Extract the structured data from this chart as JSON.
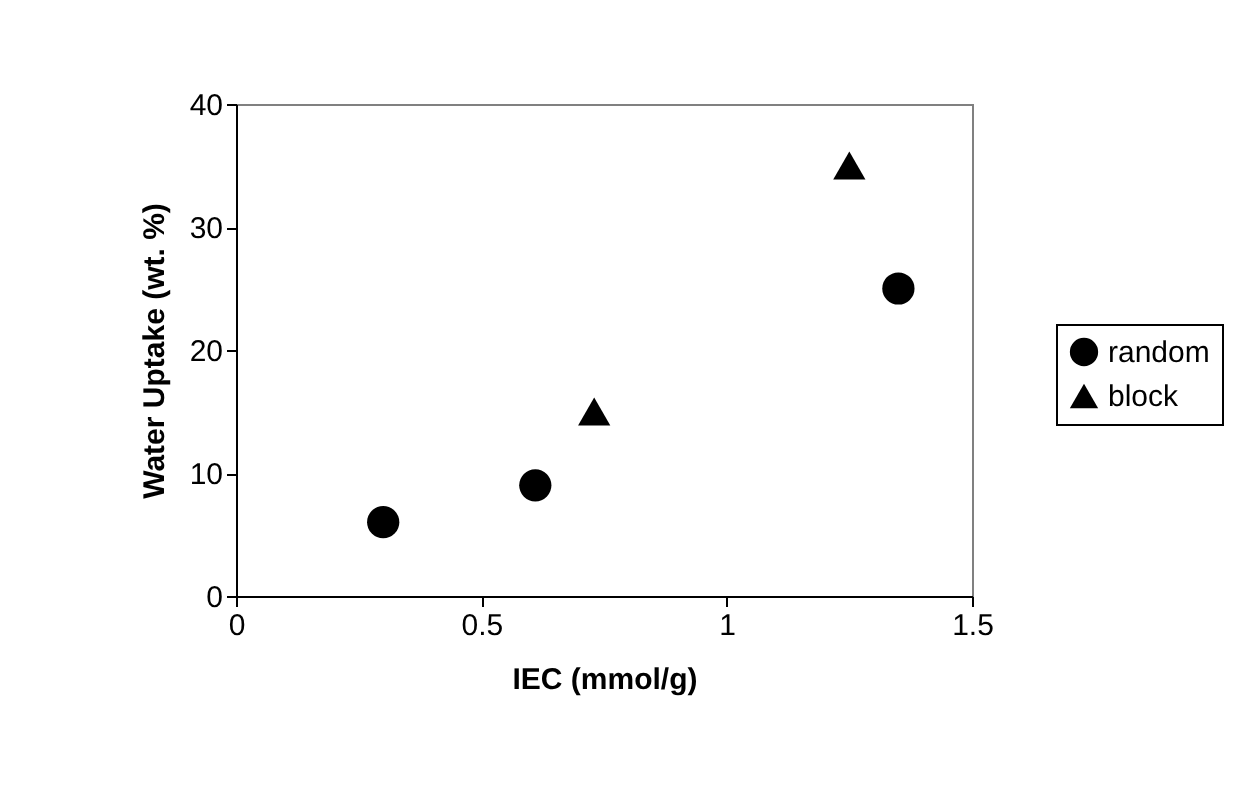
{
  "chart_data": {
    "type": "scatter",
    "xlabel": "IEC (mmol/g)",
    "ylabel": "Water Uptake (wt. %)",
    "xlim": [
      0,
      1.5
    ],
    "xticks": [
      0,
      0.5,
      1,
      1.5
    ],
    "ylim": [
      0,
      40
    ],
    "yticks": [
      0,
      10,
      20,
      30,
      40
    ],
    "grid": false,
    "legend": "right",
    "series": [
      {
        "name": "random",
        "color": "#000000",
        "marker": "circle",
        "x": [
          0.3,
          0.61,
          1.35
        ],
        "values": [
          6,
          9,
          25
        ]
      },
      {
        "name": "block",
        "color": "#000000",
        "marker": "triangle",
        "x": [
          0.73,
          1.25
        ],
        "values": [
          15,
          35
        ]
      }
    ]
  }
}
